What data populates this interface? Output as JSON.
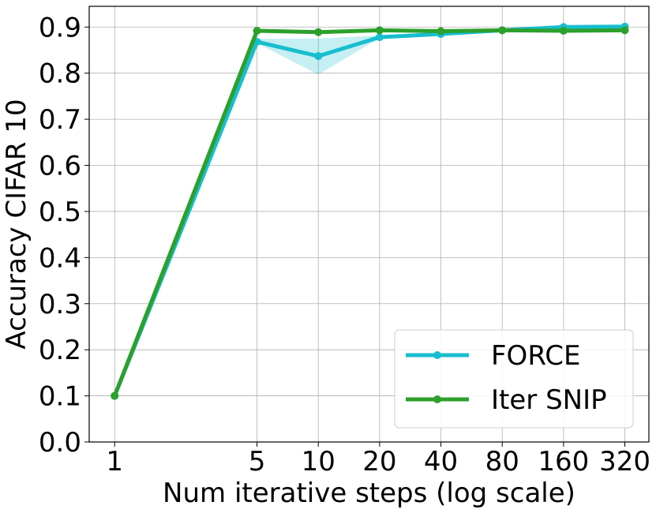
{
  "chart_data": {
    "type": "line",
    "title": "",
    "xlabel": "Num iterative steps (log scale)",
    "ylabel": "Accuracy CIFAR 10",
    "x_scale": "log",
    "x": [
      1,
      5,
      10,
      20,
      40,
      80,
      160,
      320
    ],
    "x_tick_labels": [
      "1",
      "5",
      "10",
      "20",
      "40",
      "80",
      "160",
      "320"
    ],
    "y_ticks": [
      0.0,
      0.1,
      0.2,
      0.3,
      0.4,
      0.5,
      0.6,
      0.7,
      0.8,
      0.9
    ],
    "y_tick_labels": [
      "0.0",
      "0.1",
      "0.2",
      "0.3",
      "0.4",
      "0.5",
      "0.6",
      "0.7",
      "0.8",
      "0.9"
    ],
    "xlim": [
      0.75,
      420
    ],
    "ylim": [
      0.0,
      0.945
    ],
    "grid": true,
    "legend_position": "bottom-right",
    "series": [
      {
        "name": "FORCE",
        "color": "#17becf",
        "values": [
          0.1,
          0.868,
          0.837,
          0.878,
          0.885,
          0.893,
          0.9,
          0.901
        ],
        "band_low": [
          0.1,
          0.865,
          0.797,
          0.876,
          0.883,
          0.891,
          0.898,
          0.899
        ],
        "band_high": [
          0.1,
          0.875,
          0.875,
          0.882,
          0.888,
          0.895,
          0.902,
          0.903
        ]
      },
      {
        "name": "Iter SNIP",
        "color": "#2ca02c",
        "values": [
          0.1,
          0.892,
          0.889,
          0.893,
          0.891,
          0.893,
          0.892,
          0.893
        ]
      }
    ]
  }
}
